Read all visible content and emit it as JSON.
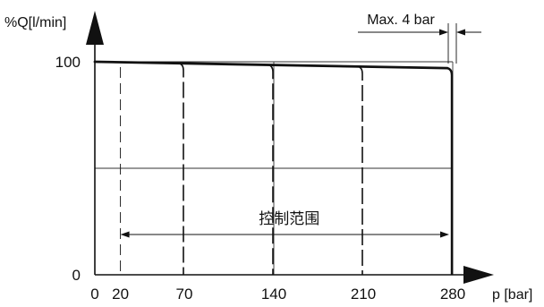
{
  "chart_data": {
    "type": "line",
    "ylabel": "%Q[l/min]",
    "xlabel": "p [bar]",
    "x_ticks": [
      0,
      20,
      70,
      140,
      210,
      280
    ],
    "x_tick_labels": [
      "0",
      "20",
      "70",
      "140",
      "210",
      "280"
    ],
    "y_ticks": [
      0,
      100
    ],
    "y_tick_labels": [
      "0",
      "100"
    ],
    "xlim": [
      0,
      280
    ],
    "ylim": [
      0,
      100
    ],
    "envelope": {
      "x": [
        0,
        280
      ],
      "y": [
        100,
        97
      ]
    },
    "pressure_settings": [
      70,
      140,
      210,
      280
    ],
    "annotation_range": {
      "label": "控制范围",
      "from": 20,
      "to": 280
    },
    "annotation_max": {
      "label": "Max. 4 bar"
    },
    "grid": "partial"
  }
}
